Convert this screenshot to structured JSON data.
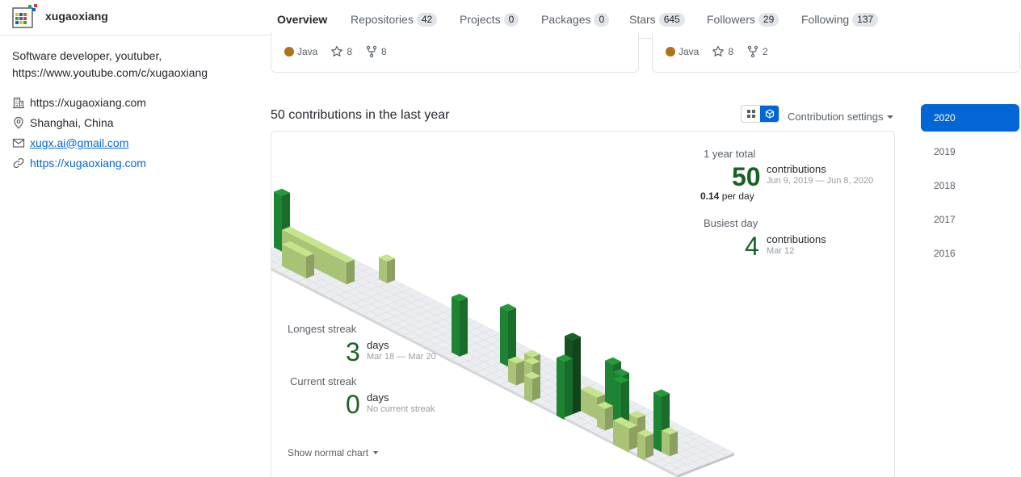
{
  "profile": {
    "username": "xugaoxiang",
    "bio_line1": "Software developer, youtuber,",
    "bio_line2": "https://www.youtube.com/c/xugaoxiang",
    "company": "https://xugaoxiang.com",
    "location": "Shanghai, China",
    "email": "xugx.ai@gmail.com",
    "website": "https://xugaoxiang.com"
  },
  "nav": {
    "tabs": [
      {
        "label": "Overview",
        "count": null
      },
      {
        "label": "Repositories",
        "count": "42"
      },
      {
        "label": "Projects",
        "count": "0"
      },
      {
        "label": "Packages",
        "count": "0"
      },
      {
        "label": "Stars",
        "count": "645"
      },
      {
        "label": "Followers",
        "count": "29"
      },
      {
        "label": "Following",
        "count": "137"
      }
    ]
  },
  "repos": [
    {
      "language": "Java",
      "lang_color": "#b07219",
      "stars": "8",
      "forks": "8"
    },
    {
      "language": "Java",
      "lang_color": "#b07219",
      "stars": "8",
      "forks": "2"
    }
  ],
  "contributions": {
    "title": "50 contributions in the last year",
    "settings_label": "Contribution settings",
    "years": [
      "2020",
      "2019",
      "2018",
      "2017",
      "2016"
    ],
    "total_label": "1 year total",
    "total_value": "50",
    "total_unit": "contributions",
    "total_range": "Jun 9, 2019 — Jun 8, 2020",
    "per_day_value": "0.14",
    "per_day_unit": "per day",
    "busiest_label": "Busiest day",
    "busiest_value": "4",
    "busiest_unit": "contributions",
    "busiest_date": "Mar 12",
    "longest_label": "Longest streak",
    "longest_value": "3",
    "longest_unit": "days",
    "longest_range": "Mar 18 — Mar 20",
    "current_label": "Current streak",
    "current_value": "0",
    "current_unit": "days",
    "current_range": "No current streak",
    "show_normal_label": "Show normal chart",
    "colors": {
      "level0": "#ebedf0",
      "level1": "#c6e48b",
      "level2": "#7bc96f",
      "level3": "#239a3b",
      "level4": "#196127"
    }
  }
}
